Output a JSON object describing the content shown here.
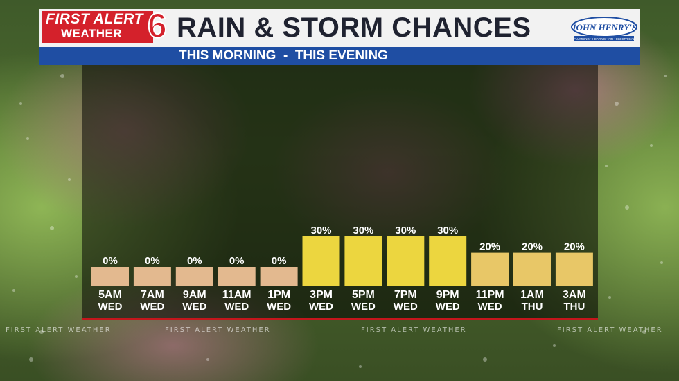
{
  "header": {
    "logo_line1": "FIRST ALERT",
    "logo_line2": "WEATHER",
    "logo_number": "6",
    "title": "RAIN & STORM CHANCES",
    "sponsor": "JOHN HENRY'S",
    "sponsor_tagline": "PLUMBING • HEATING • AIR • ELECTRICAL",
    "subtitle": "THIS MORNING  -  THIS EVENING"
  },
  "ticker": [
    "FIRST ALERT WEATHER",
    "FIRST ALERT WEATHER",
    "FIRST ALERT WEATHER",
    "FIRST ALERT WEATHER"
  ],
  "colors": {
    "bar_0": "#e3b98f",
    "bar_30": "#ecd63f",
    "bar_20": "#e8c767",
    "header_blue": "#1f4ea3",
    "brand_red": "#d4212b"
  },
  "chart_data": {
    "type": "bar",
    "title": "RAIN & STORM CHANCES",
    "subtitle": "THIS MORNING  -  THIS EVENING",
    "categories": [
      {
        "time": "5AM",
        "day": "WED"
      },
      {
        "time": "7AM",
        "day": "WED"
      },
      {
        "time": "9AM",
        "day": "WED"
      },
      {
        "time": "11AM",
        "day": "WED"
      },
      {
        "time": "1PM",
        "day": "WED"
      },
      {
        "time": "3PM",
        "day": "WED"
      },
      {
        "time": "5PM",
        "day": "WED"
      },
      {
        "time": "7PM",
        "day": "WED"
      },
      {
        "time": "9PM",
        "day": "WED"
      },
      {
        "time": "11PM",
        "day": "WED"
      },
      {
        "time": "1AM",
        "day": "THU"
      },
      {
        "time": "3AM",
        "day": "THU"
      }
    ],
    "values": [
      0,
      0,
      0,
      0,
      0,
      30,
      30,
      30,
      30,
      20,
      20,
      20
    ],
    "value_labels": [
      "0%",
      "0%",
      "0%",
      "0%",
      "0%",
      "30%",
      "30%",
      "30%",
      "30%",
      "20%",
      "20%",
      "20%"
    ],
    "unit": "%",
    "ylim": [
      0,
      100
    ],
    "grid": false,
    "legend": "none"
  }
}
